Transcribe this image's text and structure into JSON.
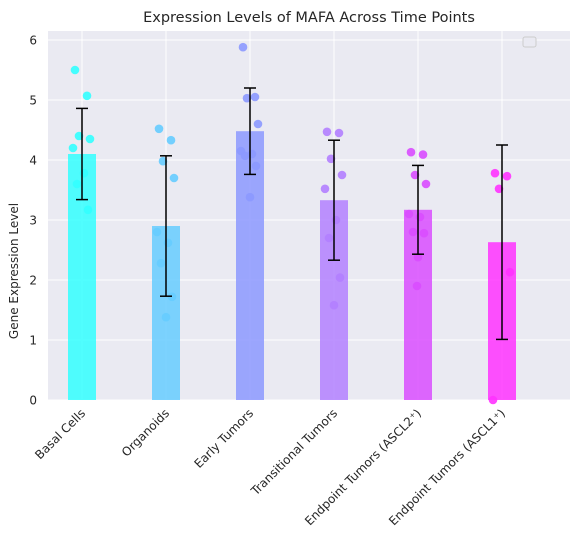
{
  "chart_data": {
    "type": "bar",
    "title": "Expression Levels of MAFA Across Time Points",
    "xlabel": "",
    "ylabel": "Gene Expression Level",
    "ylim": [
      0,
      6.15
    ],
    "yticks": [
      0,
      1,
      2,
      3,
      4,
      5,
      6
    ],
    "grid": true,
    "legend": "top-right (empty)",
    "categories": [
      "Basal Cells",
      "Organoids",
      "Early Tumors",
      "Transitional Tumors",
      "Endpoint Tumors (ASCL2⁺)",
      "Endpoint Tumors (ASCL1⁺)"
    ],
    "values": [
      4.1,
      2.9,
      4.48,
      3.33,
      3.17,
      2.63
    ],
    "errors": [
      0.76,
      1.17,
      0.72,
      1.0,
      0.74,
      1.62
    ],
    "bar_colors": [
      "#33FFFF",
      "#66CCFF",
      "#8C99FF",
      "#B380FF",
      "#D94DFF",
      "#FF33FF"
    ],
    "points": [
      [
        5.5,
        5.07,
        4.4,
        4.35,
        4.2,
        3.78,
        3.6,
        3.17
      ],
      [
        4.52,
        4.33,
        3.98,
        3.7,
        2.8,
        2.62,
        2.28,
        1.72,
        1.38
      ],
      [
        5.88,
        5.05,
        5.03,
        4.6,
        4.15,
        4.1,
        4.07,
        3.9,
        3.38
      ],
      [
        4.47,
        4.45,
        4.02,
        3.75,
        3.52,
        3.0,
        2.7,
        2.04,
        1.58
      ],
      [
        4.13,
        4.09,
        3.75,
        3.6,
        3.1,
        3.05,
        2.8,
        2.78,
        2.38,
        1.9
      ],
      [
        3.78,
        3.73,
        3.52,
        2.13,
        0.0
      ]
    ]
  }
}
